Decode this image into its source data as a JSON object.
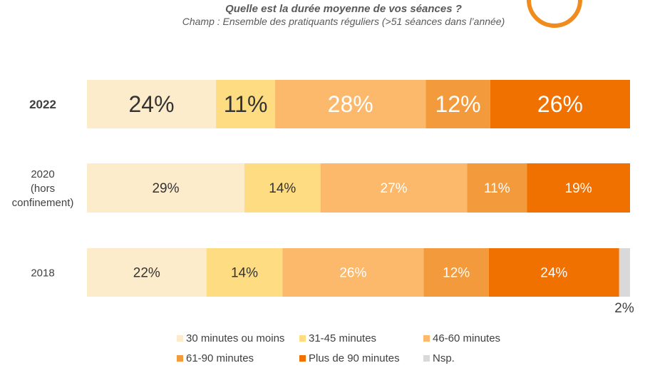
{
  "header": {
    "title": "Quelle est la durée moyenne de vos séances ?",
    "subtitle": "Champ : Ensemble des pratiquants réguliers (>51 séances dans l’année)"
  },
  "icon": {
    "name": "clock-icon",
    "face": "#ffffff",
    "rim": "#f08c1e"
  },
  "chart_data": {
    "type": "bar",
    "orientation": "horizontal",
    "stacked": true,
    "percent_stacked": true,
    "categories": [
      "2022",
      "2020 (hors confinement)",
      "2018"
    ],
    "category_lines": [
      [
        "2022"
      ],
      [
        "2020",
        "(hors",
        "confinement)"
      ],
      [
        "2018"
      ]
    ],
    "series": [
      {
        "name": "30 minutes ou moins",
        "color": "#fdeccc",
        "values": [
          24,
          29,
          22
        ]
      },
      {
        "name": "31-45 minutes",
        "color": "#fedc82",
        "values": [
          11,
          14,
          14
        ]
      },
      {
        "name": "46-60 minutes",
        "color": "#fdb96b",
        "values": [
          28,
          27,
          26
        ]
      },
      {
        "name": "61-90 minutes",
        "color": "#f39b3c",
        "values": [
          12,
          11,
          12
        ]
      },
      {
        "name": "Plus de 90 minutes",
        "color": "#f07000",
        "values": [
          26,
          19,
          24
        ]
      },
      {
        "name": "Nsp.",
        "color": "#d9d9d9",
        "values": [
          0,
          0,
          2
        ]
      }
    ],
    "data_labels": [
      [
        "24%",
        "11%",
        "28%",
        "12%",
        "26%",
        ""
      ],
      [
        "29%",
        "14%",
        "27%",
        "11%",
        "19%",
        ""
      ],
      [
        "22%",
        "14%",
        "26%",
        "12%",
        "24%",
        "2%"
      ]
    ],
    "legend_position": "bottom",
    "grid": false
  }
}
